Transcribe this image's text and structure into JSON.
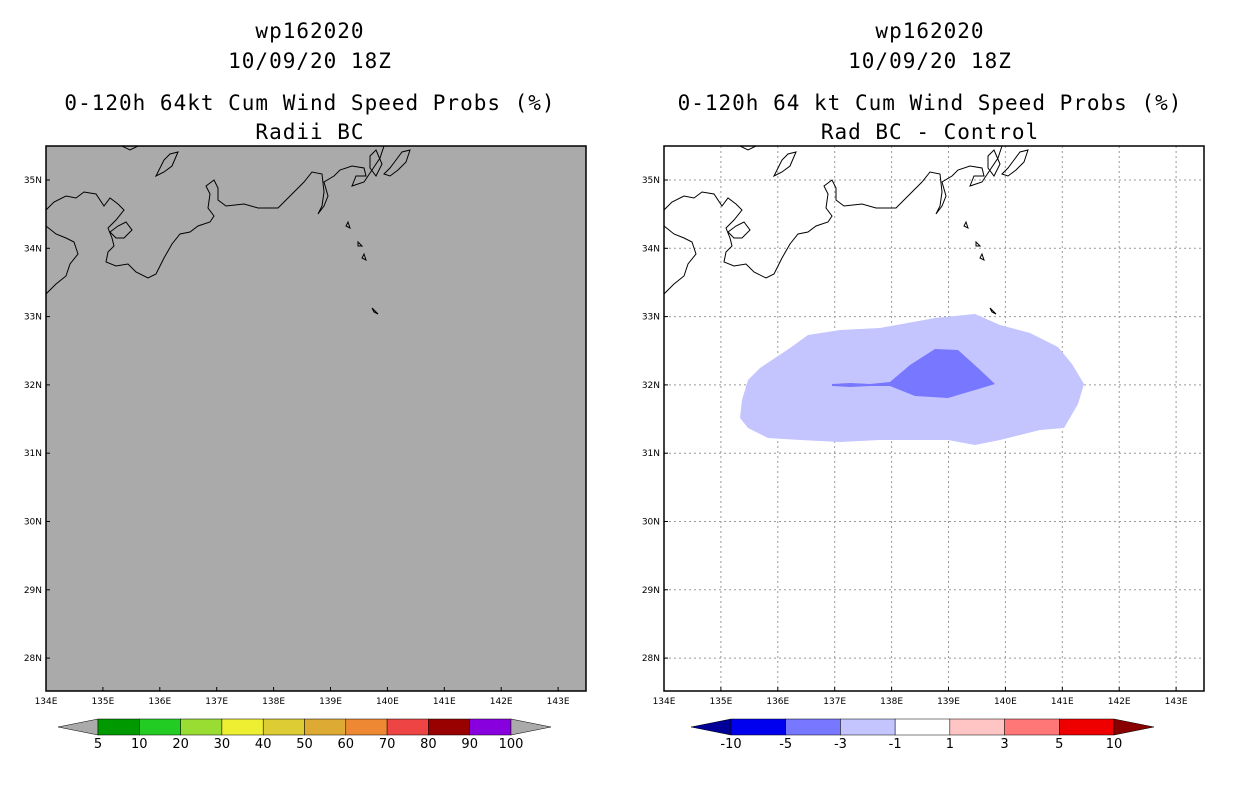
{
  "left_panel": {
    "storm_id": "wp162020",
    "datetime": "10/09/20 18Z",
    "product_title": "0-120h 64kt Cum Wind Speed Probs (%)",
    "subtitle": "Radii BC",
    "background_color": "#aaaaaa",
    "colorbar": {
      "colors": [
        "#009900",
        "#22cc22",
        "#99dd33",
        "#eeee33",
        "#ddcc33",
        "#ddaa33",
        "#ee8833",
        "#ee4444",
        "#990000",
        "#8800dd"
      ],
      "labels": [
        "5",
        "10",
        "20",
        "30",
        "40",
        "50",
        "60",
        "70",
        "80",
        "90",
        "100"
      ],
      "end_color": "#aaaaaa"
    }
  },
  "right_panel": {
    "storm_id": "wp162020",
    "datetime": "10/09/20 18Z",
    "product_title": "0-120h 64 kt Cum Wind Speed Probs (%)",
    "subtitle": "Rad BC - Control",
    "background_color": "#ffffff",
    "colorbar": {
      "colors": [
        "#0000ee",
        "#7777ff",
        "#c4c4ff",
        "#ffffff",
        "#ffc4c4",
        "#ff7777",
        "#ee0000"
      ],
      "labels": [
        "-10",
        "-5",
        "-3",
        "-1",
        "1",
        "3",
        "5",
        "10"
      ],
      "left_end_color": "#000099",
      "right_end_color": "#880000"
    },
    "contours": [
      {
        "level": "-1 to -3",
        "color": "#c4c4ff"
      },
      {
        "level": "-3 to -5",
        "color": "#7777ff"
      }
    ]
  },
  "map": {
    "lat_labels": [
      "35N",
      "34N",
      "33N",
      "32N",
      "31N",
      "30N",
      "29N",
      "28N"
    ],
    "lon_labels": [
      "134E",
      "135E",
      "136E",
      "137E",
      "138E",
      "139E",
      "140E",
      "141E",
      "142E",
      "143E"
    ]
  }
}
